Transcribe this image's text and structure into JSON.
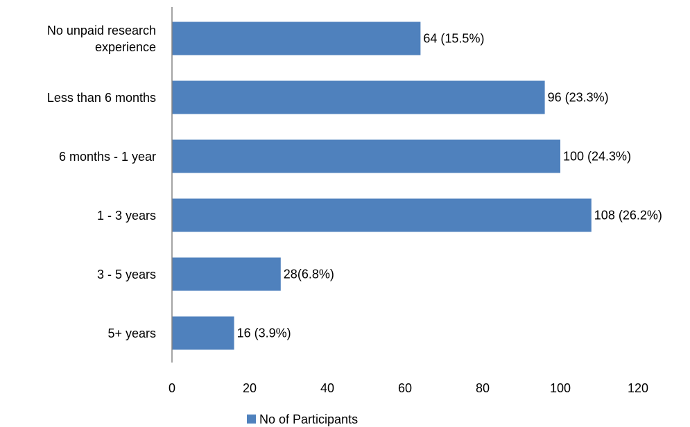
{
  "chart_data": {
    "type": "bar",
    "orientation": "horizontal",
    "categories": [
      "No unpaid research experience",
      "Less than 6 months",
      "6 months - 1 year",
      "1 - 3 years",
      "3 - 5 years",
      "5+ years"
    ],
    "series": [
      {
        "name": "No of Participants",
        "color": "#4f81bd",
        "values": [
          64,
          96,
          100,
          108,
          28,
          16
        ],
        "value_labels": [
          "64 (15.5%)",
          "96 (23.3%)",
          "100 (24.3%)",
          "108 (26.2%)",
          "28(6.8%)",
          "16 (3.9%)"
        ]
      }
    ],
    "xlim": [
      0,
      120
    ],
    "xticks": [
      0,
      20,
      40,
      60,
      80,
      100,
      120
    ],
    "grid": false,
    "legend": "bottom"
  }
}
